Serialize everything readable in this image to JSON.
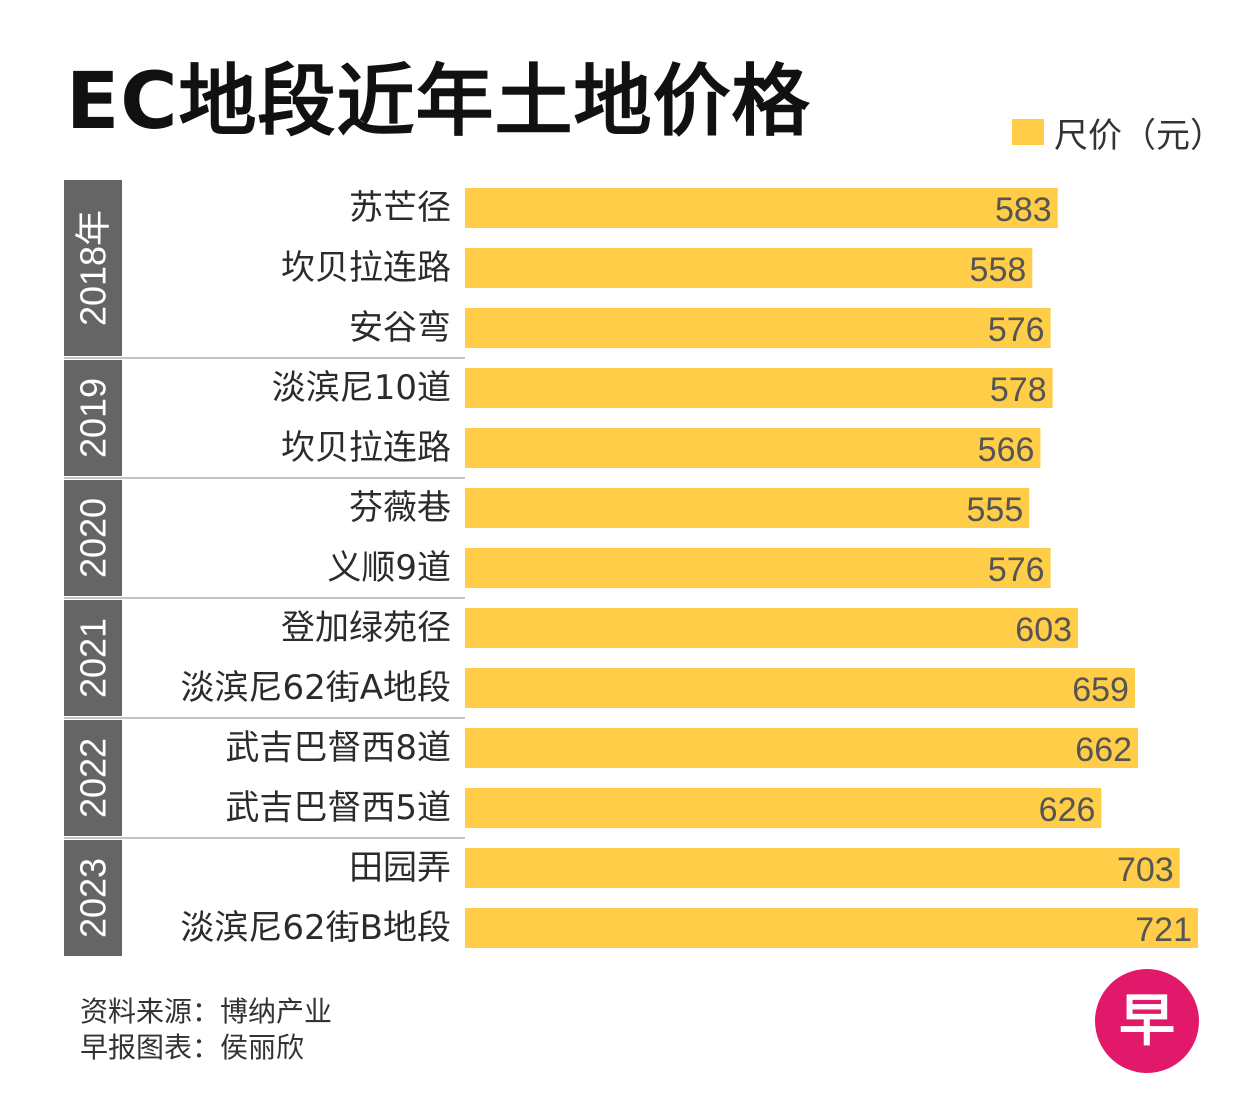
{
  "chart_data": {
    "type": "bar",
    "orientation": "horizontal",
    "title": "EC地段近年土地价格",
    "legend": {
      "label": "尺价（元）",
      "position": "top-right"
    },
    "groups": [
      {
        "label": "2018年",
        "items": [
          {
            "name": "苏芒径",
            "value": 583
          },
          {
            "name": "坎贝拉连路",
            "value": 558
          },
          {
            "name": "安谷弯",
            "value": 576
          }
        ]
      },
      {
        "label": "2019",
        "items": [
          {
            "name": "淡滨尼10道",
            "value": 578
          },
          {
            "name": "坎贝拉连路",
            "value": 566
          }
        ]
      },
      {
        "label": "2020",
        "items": [
          {
            "name": "芬薇巷",
            "value": 555
          },
          {
            "name": "义顺9道",
            "value": 576
          }
        ]
      },
      {
        "label": "2021",
        "items": [
          {
            "name": "登加绿苑径",
            "value": 603
          },
          {
            "name": "淡滨尼62街A地段",
            "value": 659
          }
        ]
      },
      {
        "label": "2022",
        "items": [
          {
            "name": "武吉巴督西8道",
            "value": 662
          },
          {
            "name": "武吉巴督西5道",
            "value": 626
          }
        ]
      },
      {
        "label": "2023",
        "items": [
          {
            "name": "田园弄",
            "value": 703
          },
          {
            "name": "淡滨尼62街B地段",
            "value": 721
          }
        ]
      }
    ],
    "colors": {
      "bar": "#ffcd47",
      "year_band": "#656565",
      "value_text": "#555555"
    }
  },
  "footer": {
    "source": "资料来源：博纳产业",
    "credit": "早报图表：侯丽欣"
  },
  "logo": {
    "char": "早",
    "color": "#e2186a"
  }
}
